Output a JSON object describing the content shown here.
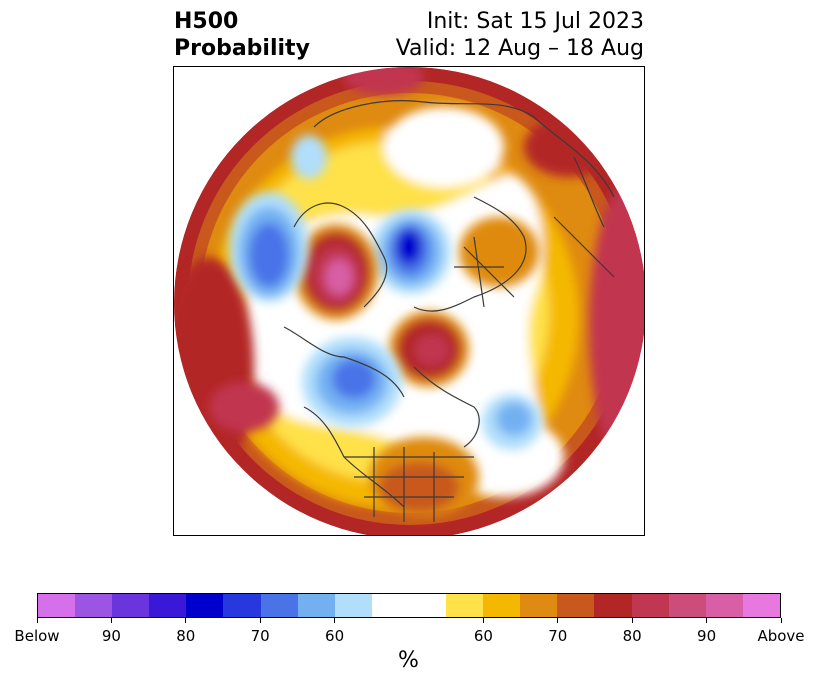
{
  "header": {
    "title_line1": "H500",
    "title_line2": "Probability",
    "init": "Init: Sat 15 Jul 2023",
    "valid": "Valid: 12 Aug – 18 Aug"
  },
  "colorbar": {
    "unit": "%",
    "ticks": [
      "Below",
      "90",
      "80",
      "70",
      "60",
      "60",
      "70",
      "80",
      "90",
      "Above"
    ],
    "swatches": [
      {
        "color": "#d570ea",
        "wide": false
      },
      {
        "color": "#9c55e2",
        "wide": false
      },
      {
        "color": "#6a35dc",
        "wide": false
      },
      {
        "color": "#3a18d8",
        "wide": false
      },
      {
        "color": "#0000cd",
        "wide": false
      },
      {
        "color": "#2838df",
        "wide": false
      },
      {
        "color": "#4a73e8",
        "wide": false
      },
      {
        "color": "#73b0f2",
        "wide": false
      },
      {
        "color": "#b0defb",
        "wide": false
      },
      {
        "color": "#ffffff",
        "wide": true
      },
      {
        "color": "#ffe14a",
        "wide": false
      },
      {
        "color": "#f5b800",
        "wide": false
      },
      {
        "color": "#df8a10",
        "wide": false
      },
      {
        "color": "#c8581c",
        "wide": false
      },
      {
        "color": "#b32626",
        "wide": false
      },
      {
        "color": "#c13650",
        "wide": false
      },
      {
        "color": "#cc4c7a",
        "wide": false
      },
      {
        "color": "#d85ea6",
        "wide": false
      },
      {
        "color": "#e678e0",
        "wide": false
      }
    ]
  }
}
